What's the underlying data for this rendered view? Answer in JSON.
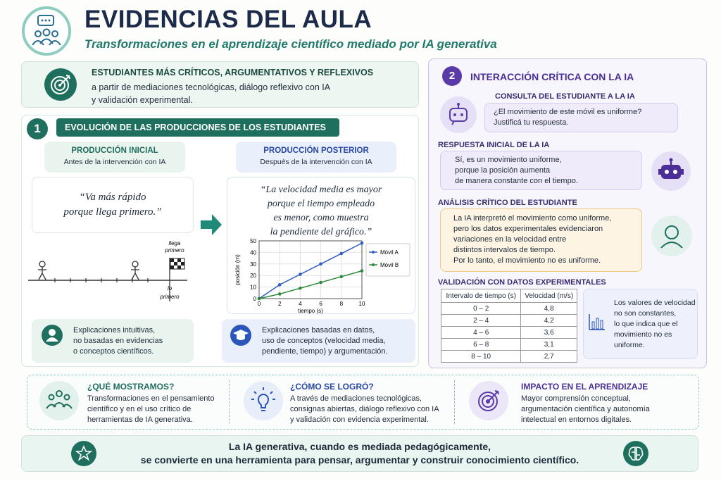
{
  "header": {
    "title": "EVIDENCIAS DEL AULA",
    "subtitle": "Transformaciones en el aprendizaje científico mediado por IA generativa"
  },
  "banner": {
    "title": "ESTUDIANTES MÁS CRÍTICOS, ARGUMENTATIVOS Y REFLEXIVOS",
    "lines": [
      "a partir de mediaciones tecnológicas, diálogo reflexivo con IA",
      "y validación experimental."
    ]
  },
  "section1": {
    "number": "1",
    "title": "EVOLUCIÓN DE LAS PRODUCCIONES DE LOS ESTUDIANTES",
    "initial": {
      "title": "PRODUCCIÓN INICIAL",
      "subtitle": "Antes de la intervención con IA",
      "quote": [
        "“Va más rápido",
        "porque llega primero.”"
      ],
      "flag_top": [
        "llega",
        "primero"
      ],
      "flag_bottom": [
        "lo",
        "primero"
      ],
      "note": [
        "Explicaciones intuitivas,",
        "no basadas en evidencias",
        "o conceptos científicos."
      ]
    },
    "later": {
      "title": "PRODUCCIÓN POSTERIOR",
      "subtitle": "Después de la intervención con IA",
      "quote": [
        "“La velocidad media es mayor",
        "porque el tiempo empleado",
        "es menor, como muestra",
        "la pendiente del gráfico.”"
      ],
      "note": [
        "Explicaciones basadas en datos,",
        "uso de conceptos (velocidad media,",
        "pendiente, tiempo) y argumentación."
      ]
    }
  },
  "chart_data": {
    "type": "line",
    "x_label": "tiempo (s)",
    "y_label": "posición (m)",
    "x": [
      0,
      2,
      4,
      6,
      8,
      10
    ],
    "series": [
      {
        "name": "Móvil A",
        "color": "#2f5fc4",
        "values": [
          0,
          12,
          21,
          30,
          39,
          48
        ]
      },
      {
        "name": "Móvil B",
        "color": "#2e8b3a",
        "values": [
          0,
          4,
          9,
          14,
          19,
          24
        ]
      }
    ],
    "xlim": [
      0,
      10
    ],
    "ylim": [
      0,
      50
    ],
    "xticks": [
      0,
      2,
      4,
      6,
      8,
      10
    ],
    "yticks": [
      0,
      10,
      20,
      30,
      40,
      50
    ],
    "grid": true,
    "legend": "right"
  },
  "section2": {
    "number": "2",
    "title": "INTERACCIÓN CRÍTICA CON LA IA",
    "query": {
      "label": "CONSULTA DEL ESTUDIANTE A LA IA",
      "lines": [
        "¿El movimiento de este móvil es uniforme?",
        "Justificá tu respuesta."
      ]
    },
    "response": {
      "label": "RESPUESTA INICIAL DE LA IA",
      "lines": [
        "Sí, es un movimiento uniforme,",
        "porque la posición aumenta",
        "de manera constante con el tiempo."
      ]
    },
    "analysis": {
      "label": "ANÁLISIS CRÍTICO DEL ESTUDIANTE",
      "lines": [
        "La IA interpretó el movimiento como uniforme,",
        "pero los datos experimentales evidenciaron",
        "variaciones en la velocidad entre",
        "distintos intervalos de tiempo.",
        "Por lo tanto, el movimiento no es uniforme."
      ]
    },
    "validation": {
      "label": "VALIDACIÓN CON DATOS EXPERIMENTALES",
      "table": {
        "header": [
          "Intervalo de tiempo (s)",
          "Velocidad (m/s)"
        ],
        "rows": [
          [
            "0 – 2",
            "4,8"
          ],
          [
            "2 – 4",
            "4,2"
          ],
          [
            "4 – 6",
            "3,6"
          ],
          [
            "6 – 8",
            "3,1"
          ],
          [
            "8 – 10",
            "2,7"
          ]
        ]
      },
      "note": [
        "Los valores de velocidad",
        "no son constantes,",
        "lo que indica que el",
        "movimiento no es",
        "uniforme."
      ]
    }
  },
  "summary": [
    {
      "title": "¿QUÉ MOSTRAMOS?",
      "lines": [
        "Transformaciones en el pensamiento",
        "científico y en el uso crítico de",
        "herramientas de IA generativa."
      ]
    },
    {
      "title": "¿CÓMO SE LOGRÓ?",
      "lines": [
        "A través de mediaciones tecnológicas,",
        "consignas abiertas, diálogo reflexivo con IA",
        "y validación con evidencia experimental."
      ]
    },
    {
      "title": "IMPACTO EN EL APRENDIZAJE",
      "lines": [
        "Mayor comprensión conceptual,",
        "argumentación científica y autonomía",
        "intelectual en entornos digitales."
      ]
    }
  ],
  "footer": {
    "lines": [
      "La IA generativa, cuando es mediada pedagógicamente,",
      "se convierte en una herramienta para pensar, argumentar y construir conocimiento científico."
    ]
  }
}
